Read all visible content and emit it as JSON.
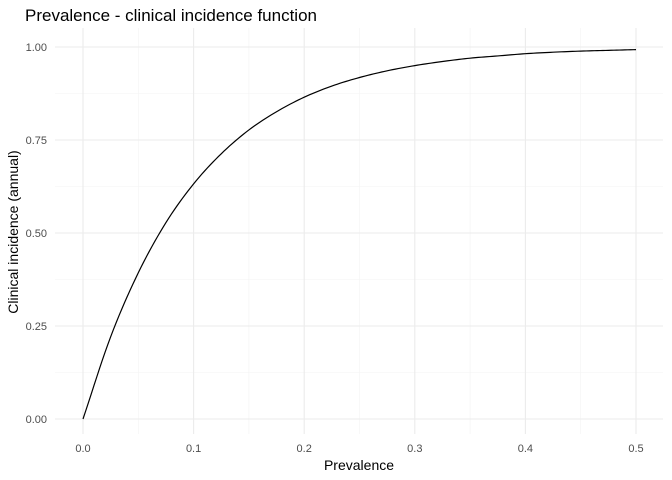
{
  "chart_data": {
    "type": "line",
    "title": "Prevalence - clinical incidence function",
    "xlabel": "Prevalence",
    "ylabel": "Clinical incidence (annual)",
    "xlim": [
      0,
      0.5
    ],
    "ylim": [
      0,
      1
    ],
    "x_ticks": [
      "0.0",
      "0.1",
      "0.2",
      "0.3",
      "0.4",
      "0.5"
    ],
    "y_ticks": [
      "0.00",
      "0.25",
      "0.50",
      "0.75",
      "1.00"
    ],
    "grid": true,
    "legend": "none",
    "series": [
      {
        "color": "#000000",
        "x": [
          0.0,
          0.025,
          0.05,
          0.075,
          0.1,
          0.125,
          0.15,
          0.175,
          0.2,
          0.225,
          0.25,
          0.275,
          0.3,
          0.325,
          0.35,
          0.375,
          0.4,
          0.425,
          0.45,
          0.475,
          0.5
        ],
        "y": [
          0.0,
          0.221,
          0.393,
          0.528,
          0.632,
          0.713,
          0.777,
          0.826,
          0.865,
          0.895,
          0.918,
          0.936,
          0.95,
          0.961,
          0.97,
          0.976,
          0.982,
          0.986,
          0.989,
          0.991,
          0.993
        ]
      }
    ]
  }
}
